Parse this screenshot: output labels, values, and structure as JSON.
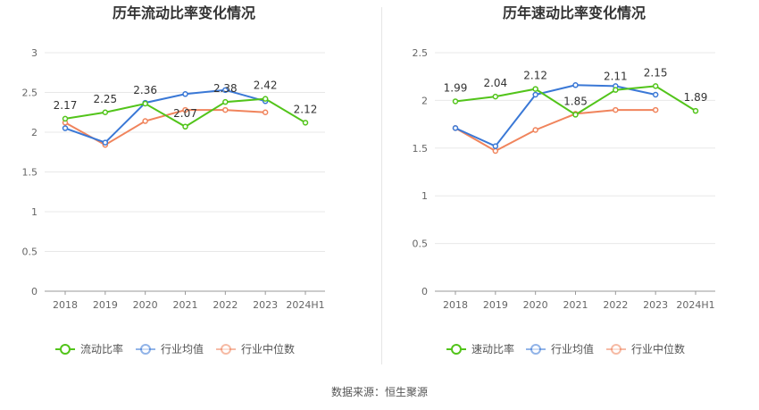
{
  "source": "数据来源：恒生聚源",
  "chart_data": [
    {
      "type": "line",
      "title": "历年流动比率变化情况",
      "categories": [
        "2018",
        "2019",
        "2020",
        "2021",
        "2022",
        "2023",
        "2024H1"
      ],
      "ylim": [
        0,
        3
      ],
      "yticks": [
        "0",
        "0.5",
        "1",
        "1.5",
        "2",
        "2.5",
        "3"
      ],
      "grid": true,
      "legend_position": "bottom",
      "series": [
        {
          "name": "流动比率",
          "color": "#52c41a",
          "labels": true,
          "values": [
            2.17,
            2.25,
            2.36,
            2.07,
            2.38,
            2.42,
            2.12
          ]
        },
        {
          "name": "行业均值",
          "color": "#3a78d6",
          "labels": false,
          "values": [
            2.05,
            1.87,
            2.37,
            2.48,
            2.53,
            2.39,
            null
          ]
        },
        {
          "name": "行业中位数",
          "color": "#f0845c",
          "labels": false,
          "values": [
            2.12,
            1.84,
            2.14,
            2.28,
            2.28,
            2.25,
            null
          ]
        }
      ]
    },
    {
      "type": "line",
      "title": "历年速动比率变化情况",
      "categories": [
        "2018",
        "2019",
        "2020",
        "2021",
        "2022",
        "2023",
        "2024H1"
      ],
      "ylim": [
        0,
        2.5
      ],
      "yticks": [
        "0",
        "0.5",
        "1",
        "1.5",
        "2",
        "2.5"
      ],
      "grid": true,
      "legend_position": "bottom",
      "series": [
        {
          "name": "速动比率",
          "color": "#52c41a",
          "labels": true,
          "values": [
            1.99,
            2.04,
            2.12,
            1.85,
            2.11,
            2.15,
            1.89
          ]
        },
        {
          "name": "行业均值",
          "color": "#3a78d6",
          "labels": false,
          "values": [
            1.71,
            1.52,
            2.06,
            2.16,
            2.15,
            2.06,
            null
          ]
        },
        {
          "name": "行业中位数",
          "color": "#f0845c",
          "labels": false,
          "values": [
            1.71,
            1.47,
            1.69,
            1.86,
            1.9,
            1.9,
            null
          ]
        }
      ]
    }
  ]
}
